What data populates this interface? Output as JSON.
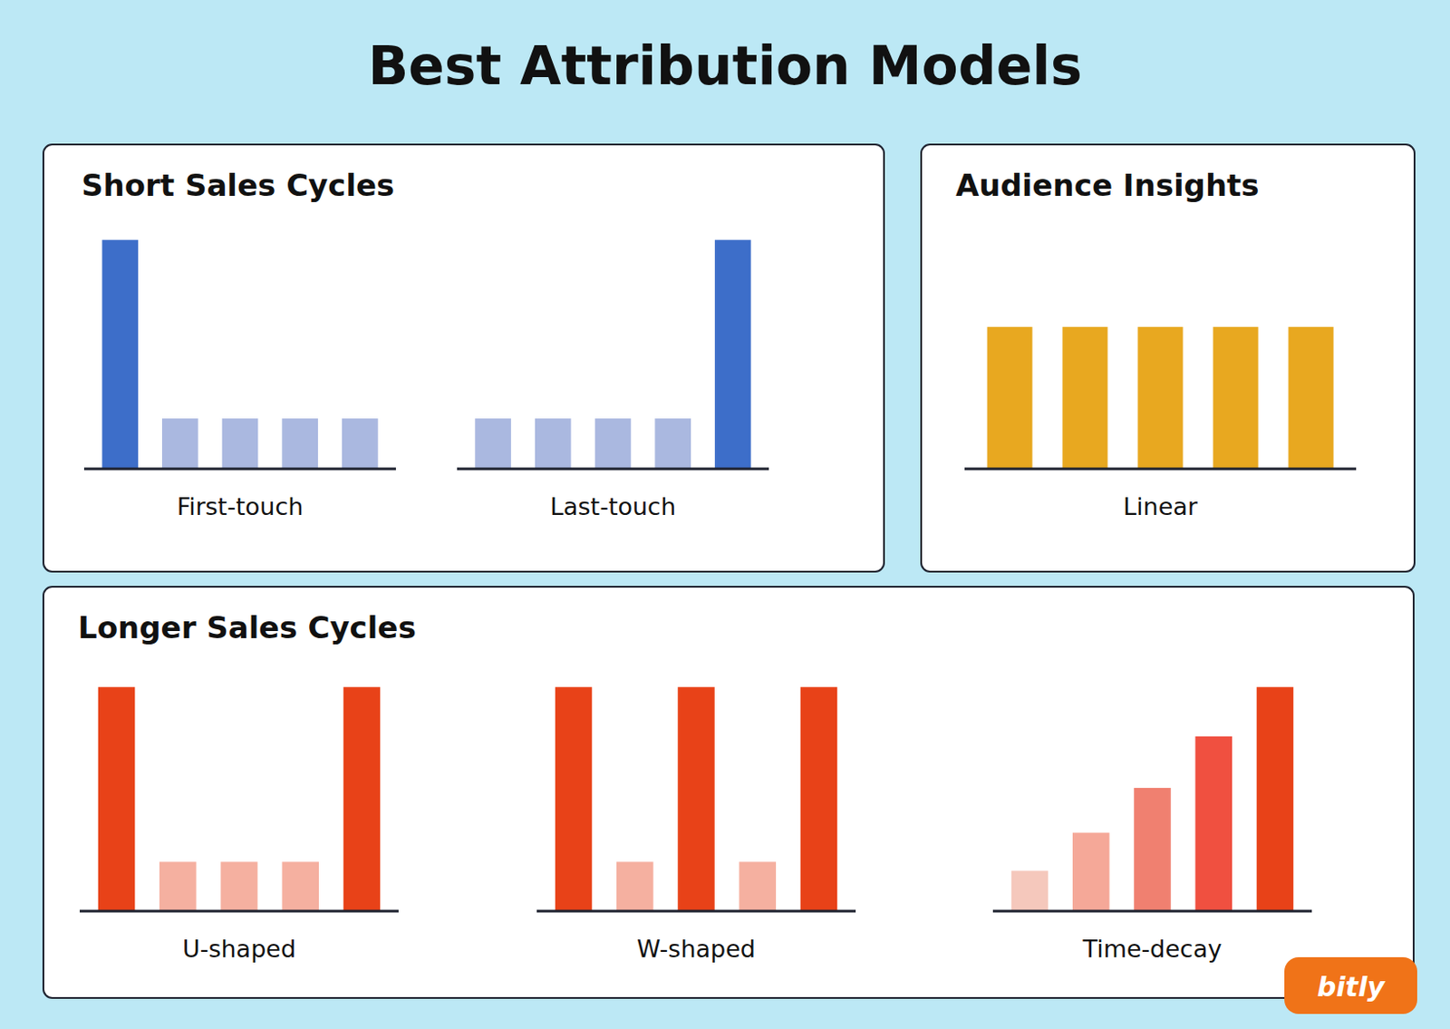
{
  "title": "Best Attribution Models",
  "annotations": [
    "Short Sales Cycles",
    "Audience Insights",
    "Longer Sales Cycles",
    "bitly"
  ],
  "chart_data": [
    {
      "type": "bar",
      "xlabel": "First-touch",
      "categories": [
        null,
        null,
        null,
        null,
        null
      ],
      "values": [
        1.0,
        0.22,
        0.22,
        0.22,
        0.22
      ],
      "colors": [
        "#3d6ec9",
        "#aab8e0",
        "#aab8e0",
        "#aab8e0",
        "#aab8e0"
      ],
      "ylim": [
        0,
        1.08
      ],
      "tick_labels": false,
      "grid": false
    },
    {
      "type": "bar",
      "xlabel": "Last-touch",
      "categories": [
        null,
        null,
        null,
        null,
        null
      ],
      "values": [
        0.22,
        0.22,
        0.22,
        0.22,
        1.0
      ],
      "colors": [
        "#aab8e0",
        "#aab8e0",
        "#aab8e0",
        "#aab8e0",
        "#3d6ec9"
      ],
      "ylim": [
        0,
        1.08
      ],
      "tick_labels": false,
      "grid": false
    },
    {
      "type": "bar",
      "xlabel": "Linear",
      "categories": [
        null,
        null,
        null,
        null,
        null
      ],
      "values": [
        0.62,
        0.62,
        0.62,
        0.62,
        0.62
      ],
      "colors": [
        "#e8a820",
        "#e8a820",
        "#e8a820",
        "#e8a820",
        "#e8a820"
      ],
      "ylim": [
        0,
        1.08
      ],
      "tick_labels": false,
      "grid": false
    },
    {
      "type": "bar",
      "xlabel": "U-shaped",
      "categories": [
        null,
        null,
        null,
        null,
        null
      ],
      "values": [
        1.0,
        0.22,
        0.22,
        0.22,
        1.0
      ],
      "colors": [
        "#e84218",
        "#f5b0a0",
        "#f5b0a0",
        "#f5b0a0",
        "#e84218"
      ],
      "ylim": [
        0,
        1.08
      ],
      "tick_labels": false,
      "grid": false
    },
    {
      "type": "bar",
      "xlabel": "W-shaped",
      "categories": [
        null,
        null,
        null,
        null,
        null
      ],
      "values": [
        1.0,
        0.22,
        1.0,
        0.22,
        1.0
      ],
      "colors": [
        "#e84218",
        "#f5b0a0",
        "#e84218",
        "#f5b0a0",
        "#e84218"
      ],
      "ylim": [
        0,
        1.08
      ],
      "tick_labels": false,
      "grid": false
    },
    {
      "type": "bar",
      "xlabel": "Time-decay",
      "categories": [
        null,
        null,
        null,
        null,
        null
      ],
      "values": [
        0.18,
        0.35,
        0.55,
        0.78,
        1.0
      ],
      "colors": [
        "#f5c8bc",
        "#f5a898",
        "#f08070",
        "#f05040",
        "#e84218"
      ],
      "ylim": [
        0,
        1.08
      ],
      "tick_labels": false,
      "grid": false
    }
  ]
}
